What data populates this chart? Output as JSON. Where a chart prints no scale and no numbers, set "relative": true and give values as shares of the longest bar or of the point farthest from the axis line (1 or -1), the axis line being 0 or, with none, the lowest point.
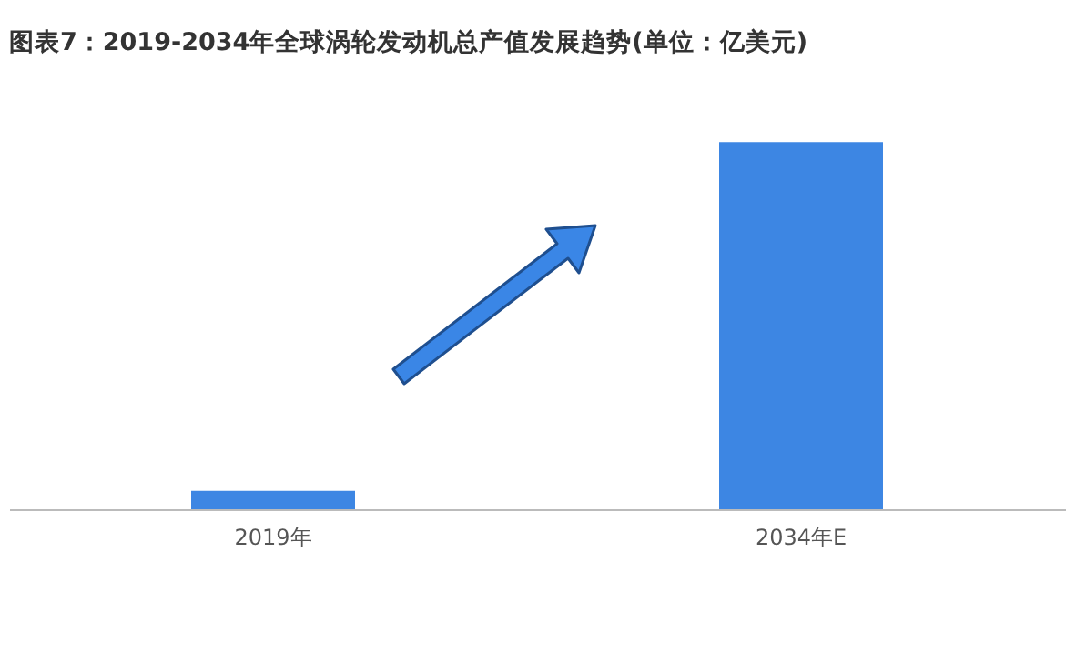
{
  "chart_data": {
    "type": "bar",
    "title": "图表7：2019-2034年全球涡轮发动机总产值发展趋势(单位：亿美元)",
    "categories": [
      "2019年",
      "2034年E"
    ],
    "values": [
      0.05,
      1
    ],
    "color": "#3d86e3",
    "relative": true
  }
}
